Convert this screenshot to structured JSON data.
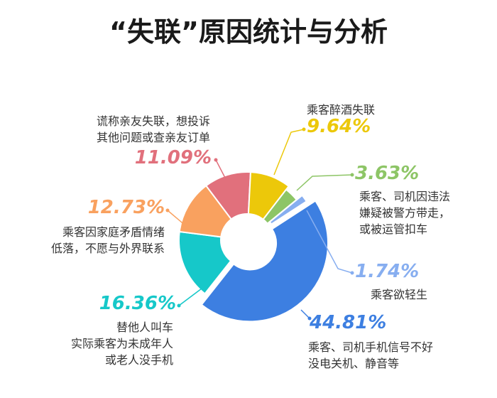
{
  "chart_data": {
    "type": "pie",
    "title": "“失联”原因统计与分析",
    "slices": [
      {
        "value_label": "44.81%",
        "value": 44.81,
        "color": "#3d7fe1",
        "label_lines": [
          "乘客、司机手机信号不好",
          "没电关机、静音等"
        ]
      },
      {
        "value_label": "16.36%",
        "value": 16.36,
        "color": "#16c8c9",
        "label_lines": [
          "替他人叫车",
          "实际乘客为未成年人",
          "或老人没手机"
        ]
      },
      {
        "value_label": "12.73%",
        "value": 12.73,
        "color": "#f9a15f",
        "label_lines": [
          "乘客因家庭矛盾情绪",
          "低落，不愿与外界联系"
        ]
      },
      {
        "value_label": "11.09%",
        "value": 11.09,
        "color": "#e1707c",
        "label_lines": [
          "谎称亲友失联，想投诉",
          "其他问题或查亲友订单"
        ]
      },
      {
        "value_label": "9.64%",
        "value": 9.64,
        "color": "#ecc80a",
        "label_lines": [
          "乘客醉酒失联"
        ]
      },
      {
        "value_label": "3.63%",
        "value": 3.63,
        "color": "#8dc566",
        "label_lines": [
          "乘客、司机因违法",
          "嫌疑被警方带走，",
          "或被运管扣车"
        ]
      },
      {
        "value_label": "1.74%",
        "value": 1.74,
        "color": "#87aef0",
        "label_lines": [
          "乘客欲轻生"
        ]
      }
    ]
  }
}
